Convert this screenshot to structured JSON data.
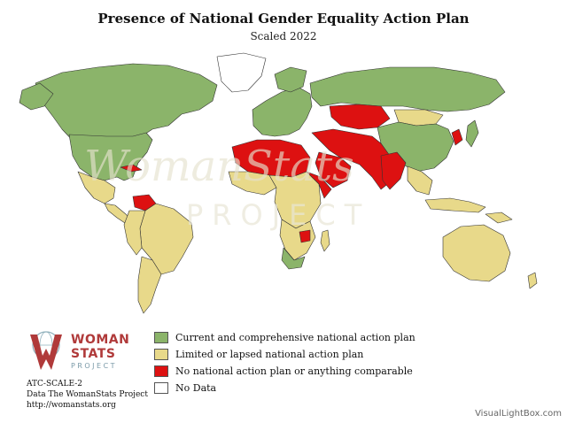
{
  "title": "Presence of National Gender Equality Action Plan",
  "subtitle": "Scaled 2022",
  "watermark": {
    "logo_text": "WomanStats",
    "project_text": "PROJECT"
  },
  "colors": {
    "current": "#8bb46a",
    "limited": "#e8d98a",
    "none": "#dd1111",
    "nodata": "#ffffff",
    "border": "#333333"
  },
  "legend": [
    {
      "label": "Current and comprehensive national action plan",
      "color": "#8bb46a"
    },
    {
      "label": "Limited or lapsed national action plan",
      "color": "#e8d98a"
    },
    {
      "label": "No national action plan or anything comparable",
      "color": "#dd1111"
    },
    {
      "label": "No Data",
      "color": "#ffffff"
    }
  ],
  "logo": {
    "line1": "WOMAN",
    "line2": "STATS",
    "line3": "PROJECT",
    "icon": "globe-venus-icon"
  },
  "meta": {
    "code": "ATC-SCALE-2",
    "source": "Data The WomanStats Project",
    "url": "http://womanstats.org"
  },
  "credit": "VisualLightBox.com"
}
